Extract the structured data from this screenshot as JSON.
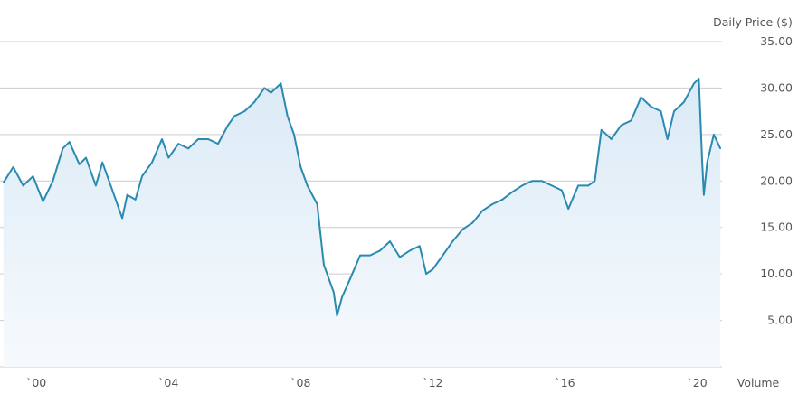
{
  "chart_data": {
    "type": "area",
    "ylabel": "Daily Price ($)",
    "volume_label": "Volume",
    "ylim": [
      0,
      35
    ],
    "y_ticks": [
      5,
      10,
      15,
      20,
      25,
      30,
      35
    ],
    "y_tick_labels": [
      "5.00",
      "10.00",
      "15.00",
      "20.00",
      "25.00",
      "30.00",
      "35.00"
    ],
    "xlim": [
      1998.9,
      2020.75
    ],
    "x_ticks": [
      2000,
      2004,
      2008,
      2012,
      2016,
      2020
    ],
    "x_tick_labels": [
      "`00",
      "`04",
      "`08",
      "`12",
      "`16",
      "`20"
    ],
    "grid": true,
    "colors": {
      "line": "#2a8ab0",
      "area_top": "#dbeaf6",
      "area_bottom": "#f6fafd",
      "grid": "#cccccc"
    },
    "series": [
      {
        "x": [
          1999.0,
          1999.3,
          1999.6,
          1999.9,
          2000.2,
          2000.5,
          2000.8,
          2001.0,
          2001.3,
          2001.5,
          2001.8,
          2002.0,
          2002.3,
          2002.6,
          2002.75,
          2003.0,
          2003.2,
          2003.5,
          2003.8,
          2004.0,
          2004.3,
          2004.6,
          2004.9,
          2005.2,
          2005.5,
          2005.8,
          2006.0,
          2006.3,
          2006.6,
          2006.9,
          2007.1,
          2007.4,
          2007.6,
          2007.8,
          2008.0,
          2008.2,
          2008.5,
          2008.7,
          2008.85,
          2009.0,
          2009.1,
          2009.25,
          2009.5,
          2009.8,
          2010.1,
          2010.4,
          2010.7,
          2011.0,
          2011.3,
          2011.6,
          2011.8,
          2012.0,
          2012.3,
          2012.6,
          2012.9,
          2013.2,
          2013.5,
          2013.8,
          2014.1,
          2014.4,
          2014.7,
          2015.0,
          2015.3,
          2015.6,
          2015.9,
          2016.1,
          2016.4,
          2016.7,
          2016.9,
          2017.1,
          2017.4,
          2017.7,
          2018.0,
          2018.3,
          2018.6,
          2018.9,
          2019.1,
          2019.3,
          2019.6,
          2019.9,
          2020.05,
          2020.15,
          2020.2,
          2020.3,
          2020.5,
          2020.7
        ],
        "y": [
          19.8,
          21.5,
          19.5,
          20.5,
          17.8,
          20.0,
          23.5,
          24.2,
          21.8,
          22.5,
          19.5,
          22.0,
          19.0,
          16.0,
          18.5,
          18.0,
          20.5,
          22.0,
          24.5,
          22.5,
          24.0,
          23.5,
          24.5,
          24.5,
          24.0,
          26.0,
          27.0,
          27.5,
          28.5,
          30.0,
          29.5,
          30.5,
          27.0,
          25.0,
          21.5,
          19.5,
          17.5,
          11.0,
          9.5,
          8.0,
          5.5,
          7.5,
          9.5,
          12.0,
          12.0,
          12.5,
          13.5,
          11.8,
          12.5,
          13.0,
          10.0,
          10.5,
          12.0,
          13.5,
          14.8,
          15.5,
          16.8,
          17.5,
          18.0,
          18.8,
          19.5,
          20.0,
          20.0,
          19.5,
          19.0,
          17.0,
          19.5,
          19.5,
          20.0,
          25.5,
          24.5,
          26.0,
          26.5,
          29.0,
          28.0,
          27.5,
          24.5,
          27.5,
          28.5,
          30.5,
          31.0,
          22.0,
          18.5,
          22.0,
          25.0,
          23.5
        ]
      }
    ]
  }
}
